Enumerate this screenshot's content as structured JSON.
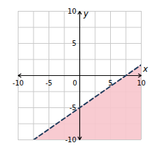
{
  "chart_data": {
    "type": "line",
    "x": [
      -7.5,
      10
    ],
    "series": [
      {
        "type": "area",
        "color": "#f7c5cc",
        "values": [
          -10,
          1.67
        ]
      },
      {
        "type": "line",
        "line_style": "dashed",
        "color": "#1f3b5c",
        "values": [
          -10,
          1.67
        ]
      }
    ],
    "xlim": [
      -10,
      10
    ],
    "ylim": [
      -10,
      10
    ],
    "xticks": [
      -10,
      -5,
      0,
      5,
      10
    ],
    "yticks": [
      -10,
      -5,
      5,
      10
    ],
    "grid": true,
    "xlabel": "x",
    "ylabel": "y"
  }
}
